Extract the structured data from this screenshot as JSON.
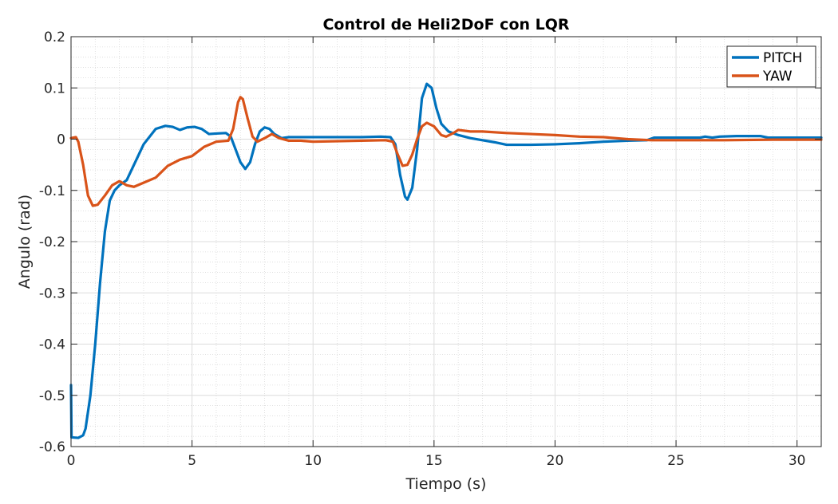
{
  "chart_data": {
    "type": "line",
    "title": "Control de Heli2DoF con LQR",
    "xlabel": "Tiempo (s)",
    "ylabel": "Angulo (rad)",
    "xlim": [
      0,
      31
    ],
    "ylim": [
      -0.6,
      0.2
    ],
    "xticks": [
      0,
      5,
      10,
      15,
      20,
      25,
      30
    ],
    "xtick_labels": [
      "0",
      "5",
      "10",
      "15",
      "20",
      "25",
      "30"
    ],
    "yticks": [
      0.2,
      0.1,
      0,
      -0.1,
      -0.2,
      -0.3,
      -0.4,
      -0.5,
      -0.6
    ],
    "ytick_labels": [
      "0.2",
      "0.1",
      "0",
      "-0.1",
      "-0.2",
      "-0.3",
      "-0.4",
      "-0.5",
      "-0.6"
    ],
    "grid": true,
    "minor_grid": true,
    "legend_position": "top-right",
    "series": [
      {
        "name": "PITCH",
        "color": "#0072BD",
        "points": [
          [
            0,
            -0.48
          ],
          [
            0.02,
            -0.582
          ],
          [
            0.3,
            -0.583
          ],
          [
            0.5,
            -0.578
          ],
          [
            0.6,
            -0.565
          ],
          [
            0.8,
            -0.5
          ],
          [
            1.0,
            -0.4
          ],
          [
            1.2,
            -0.28
          ],
          [
            1.4,
            -0.18
          ],
          [
            1.6,
            -0.12
          ],
          [
            1.8,
            -0.1
          ],
          [
            2.0,
            -0.09
          ],
          [
            2.3,
            -0.08
          ],
          [
            2.6,
            -0.05
          ],
          [
            3.0,
            -0.01
          ],
          [
            3.5,
            0.02
          ],
          [
            3.9,
            0.026
          ],
          [
            4.2,
            0.024
          ],
          [
            4.5,
            0.018
          ],
          [
            4.8,
            0.023
          ],
          [
            5.1,
            0.024
          ],
          [
            5.4,
            0.02
          ],
          [
            5.7,
            0.01
          ],
          [
            6.0,
            0.011
          ],
          [
            6.4,
            0.012
          ],
          [
            6.6,
            0.005
          ],
          [
            6.8,
            -0.02
          ],
          [
            7.0,
            -0.045
          ],
          [
            7.2,
            -0.058
          ],
          [
            7.4,
            -0.045
          ],
          [
            7.6,
            -0.01
          ],
          [
            7.8,
            0.015
          ],
          [
            8.0,
            0.023
          ],
          [
            8.2,
            0.02
          ],
          [
            8.4,
            0.01
          ],
          [
            8.7,
            0.002
          ],
          [
            9.0,
            0.004
          ],
          [
            10,
            0.004
          ],
          [
            11,
            0.004
          ],
          [
            12,
            0.004
          ],
          [
            12.8,
            0.005
          ],
          [
            13.2,
            0.004
          ],
          [
            13.4,
            -0.01
          ],
          [
            13.6,
            -0.07
          ],
          [
            13.8,
            -0.112
          ],
          [
            13.9,
            -0.118
          ],
          [
            14.1,
            -0.095
          ],
          [
            14.3,
            -0.02
          ],
          [
            14.5,
            0.08
          ],
          [
            14.7,
            0.108
          ],
          [
            14.9,
            0.1
          ],
          [
            15.1,
            0.06
          ],
          [
            15.3,
            0.03
          ],
          [
            15.6,
            0.015
          ],
          [
            16.0,
            0.008
          ],
          [
            16.5,
            0.002
          ],
          [
            17.0,
            -0.002
          ],
          [
            17.5,
            -0.006
          ],
          [
            18.0,
            -0.011
          ],
          [
            19.0,
            -0.011
          ],
          [
            20.0,
            -0.01
          ],
          [
            21.0,
            -0.008
          ],
          [
            22.0,
            -0.005
          ],
          [
            23.0,
            -0.003
          ],
          [
            23.8,
            -0.002
          ],
          [
            24.1,
            0.003
          ],
          [
            25.0,
            0.003
          ],
          [
            26.0,
            0.003
          ],
          [
            26.2,
            0.005
          ],
          [
            26.5,
            0.003
          ],
          [
            26.8,
            0.005
          ],
          [
            27.5,
            0.006
          ],
          [
            28.5,
            0.006
          ],
          [
            28.8,
            0.003
          ],
          [
            31.0,
            0.003
          ]
        ]
      },
      {
        "name": "YAW",
        "color": "#D95319",
        "points": [
          [
            0,
            0.002
          ],
          [
            0.2,
            0.004
          ],
          [
            0.3,
            -0.005
          ],
          [
            0.5,
            -0.05
          ],
          [
            0.7,
            -0.11
          ],
          [
            0.9,
            -0.13
          ],
          [
            1.1,
            -0.128
          ],
          [
            1.4,
            -0.11
          ],
          [
            1.7,
            -0.09
          ],
          [
            2.0,
            -0.082
          ],
          [
            2.3,
            -0.09
          ],
          [
            2.6,
            -0.093
          ],
          [
            3.0,
            -0.085
          ],
          [
            3.5,
            -0.075
          ],
          [
            4.0,
            -0.052
          ],
          [
            4.5,
            -0.04
          ],
          [
            5.0,
            -0.033
          ],
          [
            5.5,
            -0.015
          ],
          [
            6.0,
            -0.005
          ],
          [
            6.5,
            -0.003
          ],
          [
            6.7,
            0.02
          ],
          [
            6.9,
            0.072
          ],
          [
            7.0,
            0.082
          ],
          [
            7.1,
            0.078
          ],
          [
            7.3,
            0.04
          ],
          [
            7.5,
            0.005
          ],
          [
            7.7,
            -0.005
          ],
          [
            8.0,
            0.002
          ],
          [
            8.3,
            0.01
          ],
          [
            8.6,
            0.002
          ],
          [
            9.0,
            -0.003
          ],
          [
            9.5,
            -0.003
          ],
          [
            10.0,
            -0.005
          ],
          [
            11.0,
            -0.004
          ],
          [
            12.0,
            -0.003
          ],
          [
            13.0,
            -0.002
          ],
          [
            13.3,
            -0.005
          ],
          [
            13.5,
            -0.03
          ],
          [
            13.7,
            -0.052
          ],
          [
            13.9,
            -0.05
          ],
          [
            14.1,
            -0.03
          ],
          [
            14.3,
            0.0
          ],
          [
            14.5,
            0.025
          ],
          [
            14.7,
            0.032
          ],
          [
            15.0,
            0.025
          ],
          [
            15.3,
            0.008
          ],
          [
            15.5,
            0.005
          ],
          [
            15.8,
            0.012
          ],
          [
            16.0,
            0.018
          ],
          [
            16.5,
            0.015
          ],
          [
            17.0,
            0.015
          ],
          [
            18.0,
            0.012
          ],
          [
            19.0,
            0.01
          ],
          [
            20.0,
            0.008
          ],
          [
            21.0,
            0.005
          ],
          [
            22.0,
            0.004
          ],
          [
            23.0,
            0.0
          ],
          [
            24.0,
            -0.002
          ],
          [
            25.0,
            -0.002
          ],
          [
            27.0,
            -0.002
          ],
          [
            29.0,
            -0.001
          ],
          [
            31.0,
            -0.001
          ]
        ]
      }
    ]
  }
}
